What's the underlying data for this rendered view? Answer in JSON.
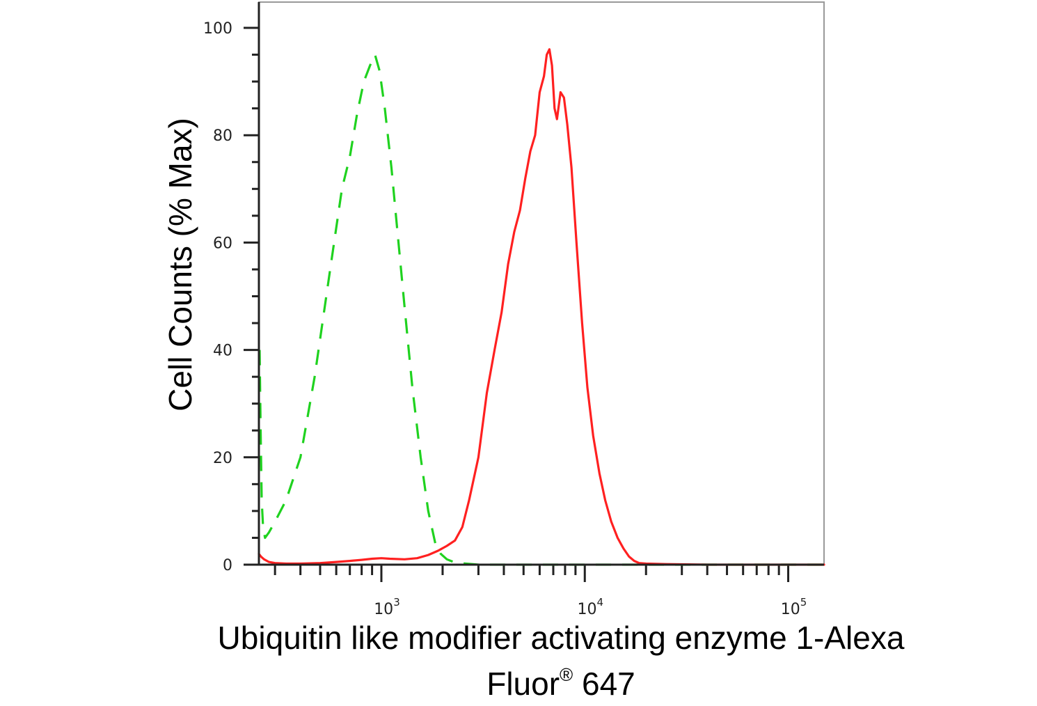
{
  "chart_data": {
    "type": "line",
    "title": "",
    "xlabel": {
      "line1": "Ubiquitin like modifier activating enzyme 1-Alexa",
      "line2_main": "Fluor",
      "line2_sup": "®",
      "line2_end": " 647"
    },
    "ylabel": "Cell Counts (% Max)",
    "x_scale": "log",
    "xlim": [
      250,
      150000
    ],
    "ylim": [
      0,
      105
    ],
    "y_ticks": [
      "0",
      "20",
      "40",
      "60",
      "80",
      "100"
    ],
    "x_ticks": [
      {
        "base": "10",
        "exp": "3",
        "value": 1000
      },
      {
        "base": "10",
        "exp": "4",
        "value": 10000
      },
      {
        "base": "10",
        "exp": "5",
        "value": 100000
      }
    ],
    "series": [
      {
        "color": "#1fd21f",
        "dash": true,
        "x": [
          252,
          255,
          258,
          262,
          268,
          280,
          300,
          340,
          400,
          470,
          560,
          640,
          700,
          760,
          820,
          880,
          930,
          980,
          1040,
          1120,
          1200,
          1300,
          1420,
          1560,
          1700,
          1840,
          1960,
          2100,
          2300,
          2600,
          3000,
          5000,
          10000,
          20000,
          50000,
          150000
        ],
        "y": [
          40,
          25,
          12,
          7,
          5,
          6,
          8,
          12,
          20,
          35,
          55,
          70,
          76,
          84,
          90,
          93,
          95,
          92,
          85,
          74,
          62,
          48,
          33,
          20,
          10,
          4,
          2,
          1,
          0.4,
          0.2,
          0,
          0,
          0,
          0,
          0,
          0
        ]
      },
      {
        "color": "#ff2020",
        "dash": false,
        "x": [
          250,
          256,
          265,
          280,
          300,
          340,
          400,
          500,
          600,
          700,
          800,
          900,
          1000,
          1100,
          1300,
          1500,
          1700,
          1900,
          2100,
          2300,
          2500,
          2700,
          3000,
          3300,
          3600,
          3900,
          4200,
          4500,
          4800,
          5100,
          5400,
          5700,
          6000,
          6300,
          6500,
          6700,
          6900,
          7100,
          7300,
          7600,
          7900,
          8200,
          8600,
          9100,
          9700,
          10300,
          11000,
          11800,
          12600,
          13500,
          14500,
          15500,
          16500,
          17500,
          18500,
          20000,
          25000,
          40000,
          80000,
          150000
        ],
        "y": [
          2,
          1.5,
          1,
          0.5,
          0.3,
          0.2,
          0.2,
          0.3,
          0.5,
          0.7,
          0.9,
          1.1,
          1.2,
          1.1,
          1,
          1.2,
          1.8,
          2.6,
          3.5,
          4.5,
          7,
          12,
          20,
          32,
          40,
          47,
          56,
          62,
          66,
          72,
          77,
          80,
          88,
          91,
          95,
          96,
          93,
          85,
          83,
          88,
          87,
          82,
          74,
          60,
          45,
          33,
          24,
          17,
          12,
          8,
          5,
          3,
          1.5,
          0.7,
          0.3,
          0.2,
          0.1,
          0,
          0,
          0
        ]
      }
    ]
  }
}
